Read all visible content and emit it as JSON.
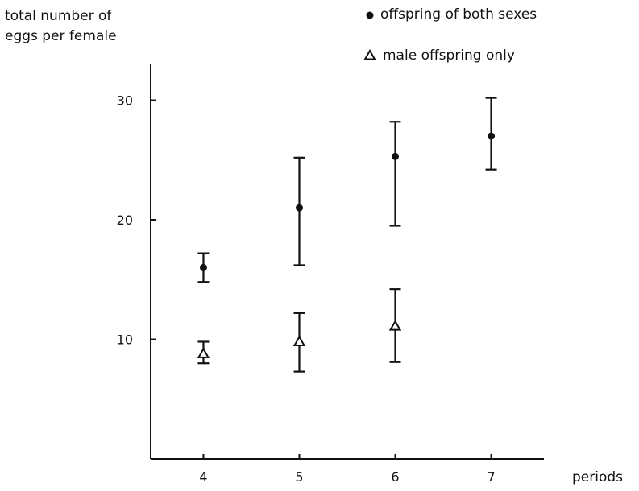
{
  "chart_data": {
    "type": "scatter",
    "ylabel": [
      "total number of",
      "eggs per female"
    ],
    "xlabel": "periods",
    "x_ticks": [
      4,
      5,
      6,
      7
    ],
    "y_ticks": [
      10,
      20,
      30
    ],
    "xlim": [
      3.45,
      7.55
    ],
    "ylim": [
      0,
      33
    ],
    "grid": false,
    "legend_placement": "top-right",
    "series": [
      {
        "name": "offspring of both sexes",
        "marker": "filled-circle",
        "color": "#111111",
        "points": [
          {
            "x": 4,
            "y": 16.0,
            "lo": 14.8,
            "hi": 17.2
          },
          {
            "x": 5,
            "y": 21.0,
            "lo": 16.2,
            "hi": 25.2
          },
          {
            "x": 6,
            "y": 25.3,
            "lo": 19.5,
            "hi": 28.2
          },
          {
            "x": 7,
            "y": 27.0,
            "lo": 24.2,
            "hi": 30.2
          }
        ]
      },
      {
        "name": "male offspring only",
        "marker": "open-triangle",
        "color": "#111111",
        "points": [
          {
            "x": 4,
            "y": 8.8,
            "lo": 8.0,
            "hi": 9.8
          },
          {
            "x": 5,
            "y": 9.8,
            "lo": 7.3,
            "hi": 12.2
          },
          {
            "x": 6,
            "y": 11.1,
            "lo": 8.1,
            "hi": 14.2
          }
        ]
      }
    ]
  }
}
